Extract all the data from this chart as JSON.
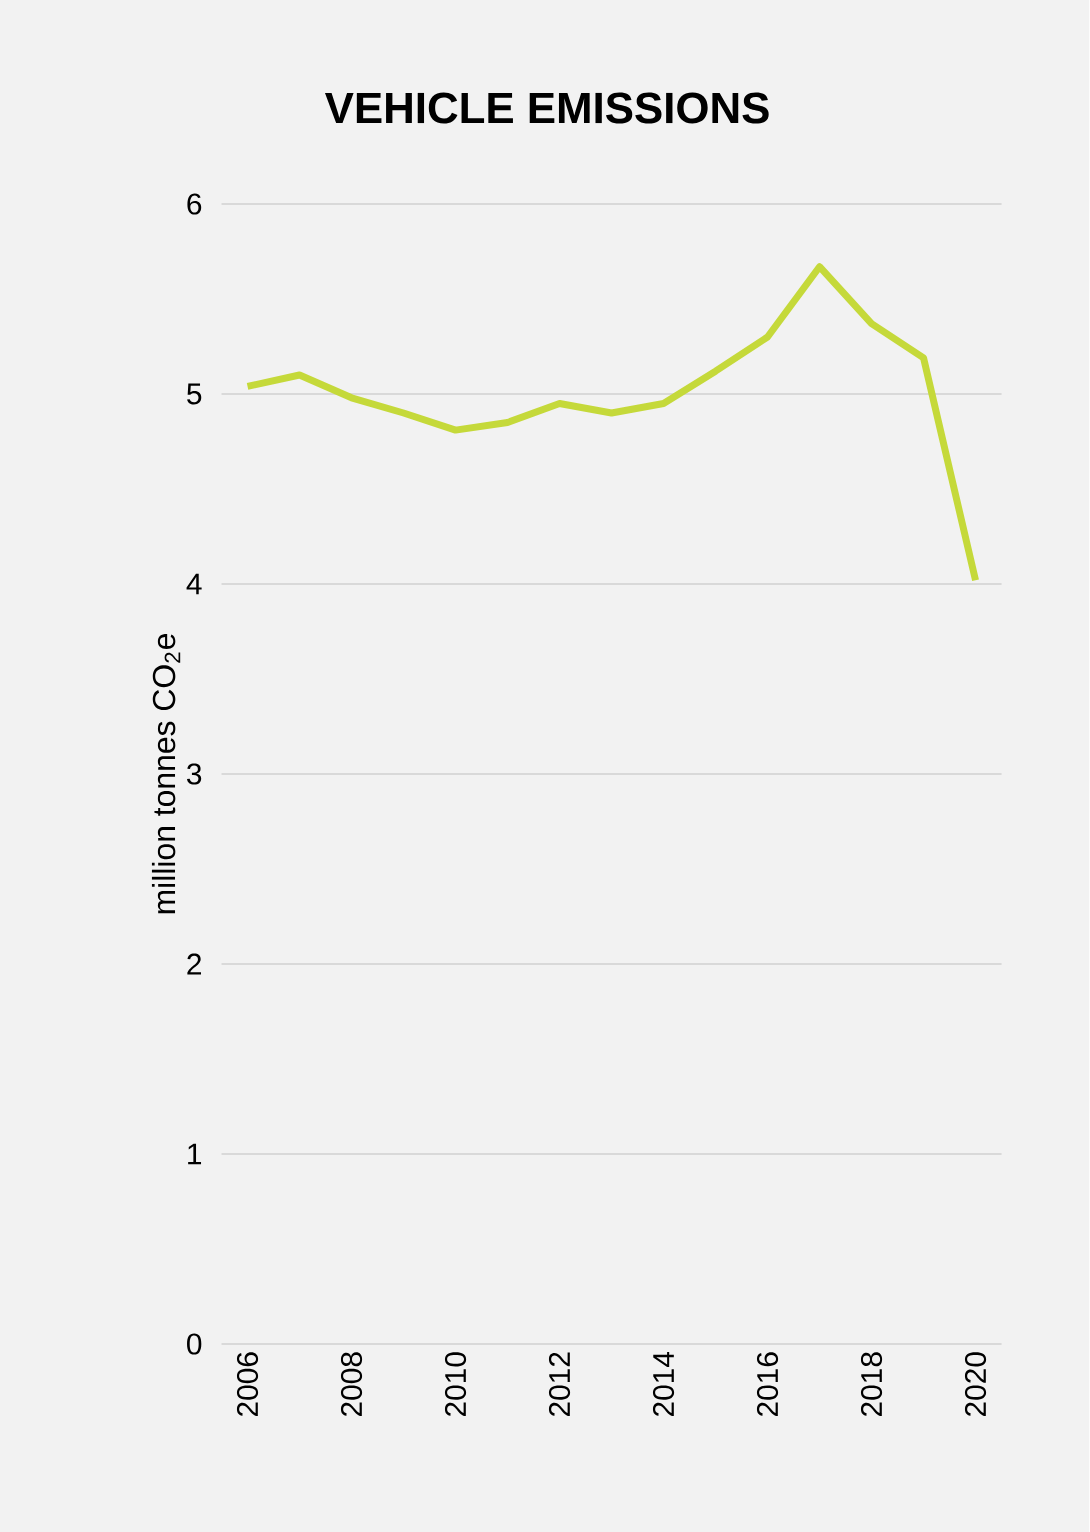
{
  "chart_data": {
    "type": "line",
    "title": "VEHICLE EMISSIONS",
    "ylabel": "million tonnes CO$_{2}$e",
    "categories": [
      "2006",
      null,
      "2008",
      null,
      "2010",
      null,
      "2012",
      null,
      "2014",
      null,
      "2016",
      null,
      "2018",
      null,
      "2020"
    ],
    "values": [
      5.04,
      5.1,
      4.98,
      4.9,
      4.81,
      4.85,
      4.95,
      4.9,
      4.95,
      5.12,
      5.3,
      5.67,
      5.37,
      5.19,
      4.02
    ],
    "color": "#c5d93a",
    "ylim": [
      0,
      6
    ],
    "yticks": [
      0,
      1,
      2,
      3,
      4,
      5,
      6
    ],
    "grid": "y",
    "marker": "none",
    "line_style": "solid"
  }
}
